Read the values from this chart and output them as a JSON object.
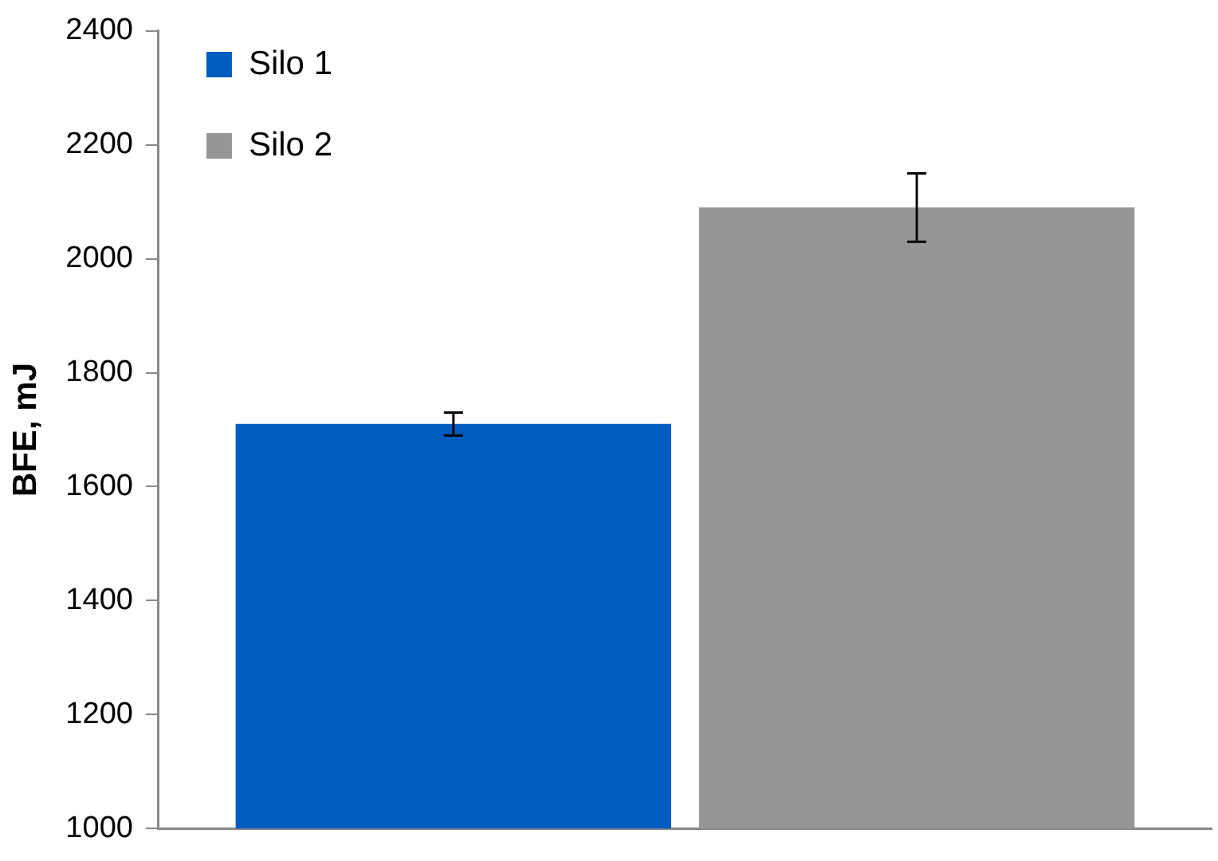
{
  "chart_data": {
    "type": "bar",
    "ylabel": "BFE, mJ",
    "categories": [
      null
    ],
    "series": [
      {
        "name": "Silo 1",
        "color": "#005dbf",
        "values": [
          1710
        ],
        "errors": [
          20
        ]
      },
      {
        "name": "Silo 2",
        "color": "#979697",
        "values": [
          2090
        ],
        "errors": [
          60
        ]
      }
    ],
    "ylim": [
      1000,
      2400
    ],
    "yticks": [
      1000,
      1200,
      1400,
      1600,
      1800,
      2000,
      2200,
      2400
    ],
    "grid": false,
    "legend": "top left"
  }
}
